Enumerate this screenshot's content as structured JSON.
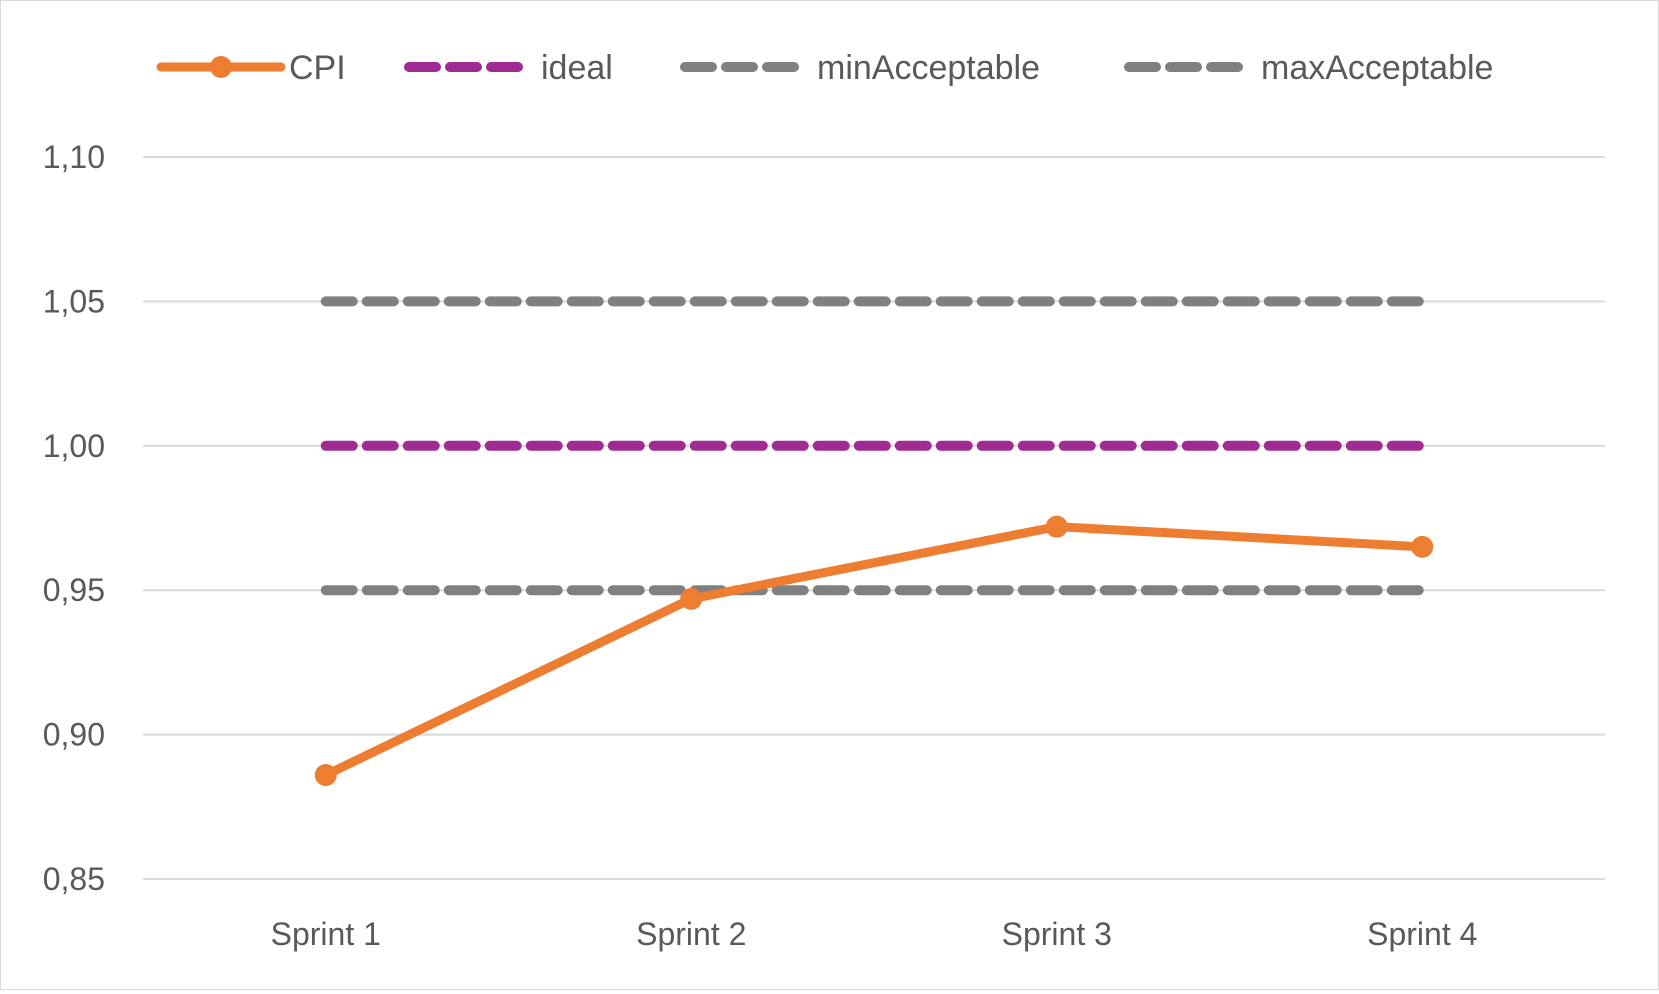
{
  "chart_data": {
    "type": "line",
    "title": "",
    "xlabel": "",
    "ylabel": "",
    "categories": [
      "Sprint 1",
      "Sprint 2",
      "Sprint 3",
      "Sprint 4"
    ],
    "ylim": [
      0.85,
      1.1
    ],
    "yticks": [
      0.85,
      0.9,
      0.95,
      1.0,
      1.05,
      1.1
    ],
    "ytick_labels": [
      "0,85",
      "0,90",
      "0,95",
      "1,00",
      "1,05",
      "1,10"
    ],
    "grid": true,
    "legend_position": "top",
    "series": [
      {
        "name": "CPI",
        "values": [
          0.886,
          0.947,
          0.972,
          0.965
        ],
        "color": "#ED7D31",
        "style": "solid-markers"
      },
      {
        "name": "ideal",
        "values": [
          1.0,
          1.0,
          1.0,
          1.0
        ],
        "color": "#A02B93",
        "style": "dashed"
      },
      {
        "name": "minAcceptable",
        "values": [
          0.95,
          0.95,
          0.95,
          0.95
        ],
        "color": "#808080",
        "style": "dashed"
      },
      {
        "name": "maxAcceptable",
        "values": [
          1.05,
          1.05,
          1.05,
          1.05
        ],
        "color": "#808080",
        "style": "dashed"
      }
    ]
  }
}
